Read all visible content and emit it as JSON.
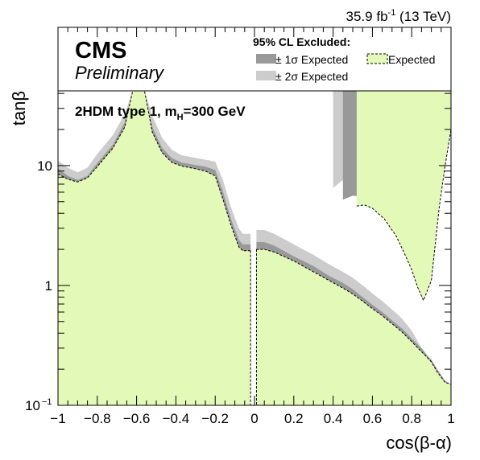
{
  "header": {
    "lumi_text": "35.9 fb",
    "lumi_sup": "-1",
    "energy_text": " (13 TeV)"
  },
  "legend": {
    "experiment": "CMS",
    "status": "Preliminary",
    "title": "95% CL Excluded:",
    "one_sigma": "± 1σ Expected",
    "two_sigma": "± 2σ Expected",
    "expected": "Expected"
  },
  "colors": {
    "expected_fill": "#e2f9b8",
    "one_sigma_fill": "#999999",
    "two_sigma_fill": "#cccccc",
    "frame": "#000000"
  },
  "chart_data": {
    "type": "area",
    "title": "2HDM type 1, m",
    "title_sub": "H",
    "title_tail": "=300 GeV",
    "xlabel": "cos(β-α)",
    "ylabel": "tanβ",
    "x_scale": "linear",
    "y_scale": "log",
    "xlim": [
      -1,
      1
    ],
    "ylim": [
      0.1,
      42
    ],
    "x_ticks": [
      {
        "value": -1,
        "label": "−1"
      },
      {
        "value": -0.8,
        "label": "−0.8"
      },
      {
        "value": -0.6,
        "label": "−0.6"
      },
      {
        "value": -0.4,
        "label": "−0.4"
      },
      {
        "value": -0.2,
        "label": "−0.2"
      },
      {
        "value": 0,
        "label": "0"
      },
      {
        "value": 0.2,
        "label": "0.2"
      },
      {
        "value": 0.4,
        "label": "0.4"
      },
      {
        "value": 0.6,
        "label": "0.6"
      },
      {
        "value": 0.8,
        "label": "0.8"
      },
      {
        "value": 1,
        "label": "1"
      }
    ],
    "y_ticks": [
      {
        "value": 0.1,
        "label": "10",
        "sup": "−1"
      },
      {
        "value": 1,
        "label": "1",
        "sup": ""
      },
      {
        "value": 10,
        "label": "10",
        "sup": ""
      }
    ],
    "series": [
      {
        "name": "± 2σ Expected",
        "left": [
          [
            -1,
            11
          ],
          [
            -0.95,
            9.6
          ],
          [
            -0.9,
            8.8
          ],
          [
            -0.85,
            9.6
          ],
          [
            -0.8,
            12.5
          ],
          [
            -0.72,
            18
          ],
          [
            -0.66,
            27
          ],
          [
            -0.62,
            42
          ],
          [
            -0.56,
            42
          ],
          [
            -0.52,
            26
          ],
          [
            -0.47,
            17
          ],
          [
            -0.42,
            13.5
          ],
          [
            -0.37,
            12.2
          ],
          [
            -0.3,
            11.6
          ],
          [
            -0.25,
            11.2
          ],
          [
            -0.2,
            10.8
          ],
          [
            -0.16,
            7.5
          ],
          [
            -0.12,
            4.5
          ],
          [
            -0.08,
            3.0
          ],
          [
            -0.06,
            2.7
          ],
          [
            -0.02,
            2.7
          ]
        ],
        "right": [
          [
            0.01,
            2.9
          ],
          [
            0.05,
            2.9
          ],
          [
            0.1,
            2.7
          ],
          [
            0.2,
            2.2
          ],
          [
            0.3,
            1.8
          ],
          [
            0.38,
            1.5
          ],
          [
            0.45,
            1.3
          ],
          [
            0.5,
            1.16
          ],
          [
            0.55,
            1.0
          ],
          [
            0.6,
            0.86
          ],
          [
            0.65,
            0.74
          ],
          [
            0.7,
            0.63
          ],
          [
            0.75,
            0.53
          ],
          [
            0.8,
            0.42
          ],
          [
            0.85,
            0.3
          ],
          [
            0.88,
            0.24
          ],
          [
            0.9,
            0.22
          ],
          [
            0.93,
            0.18
          ],
          [
            0.97,
            0.15
          ],
          [
            1,
            0.14
          ]
        ],
        "right_upper": [
          [
            0.4,
            6.5
          ],
          [
            0.45,
            7.6
          ],
          [
            0.5,
            7.9
          ],
          [
            0.55,
            7.8
          ],
          [
            0.6,
            7.4
          ],
          [
            0.67,
            6.3
          ],
          [
            0.73,
            4.5
          ],
          [
            0.77,
            3.3
          ],
          [
            0.8,
            2.3
          ],
          [
            0.83,
            1.6
          ],
          [
            0.86,
            1.2
          ],
          [
            0.9,
            3.5
          ],
          [
            0.94,
            9
          ],
          [
            0.97,
            18
          ],
          [
            1,
            28
          ]
        ]
      },
      {
        "name": "± 1σ Expected",
        "left": [
          [
            -1,
            9.5
          ],
          [
            -0.95,
            8.2
          ],
          [
            -0.9,
            7.6
          ],
          [
            -0.85,
            8.2
          ],
          [
            -0.8,
            10.5
          ],
          [
            -0.72,
            15
          ],
          [
            -0.66,
            23
          ],
          [
            -0.62,
            42
          ],
          [
            -0.56,
            42
          ],
          [
            -0.52,
            21
          ],
          [
            -0.47,
            14
          ],
          [
            -0.42,
            11.5
          ],
          [
            -0.37,
            10.6
          ],
          [
            -0.3,
            10.1
          ],
          [
            -0.25,
            9.8
          ],
          [
            -0.2,
            9.2
          ],
          [
            -0.16,
            6.0
          ],
          [
            -0.12,
            3.6
          ],
          [
            -0.08,
            2.4
          ],
          [
            -0.06,
            2.2
          ],
          [
            -0.02,
            2.2
          ]
        ],
        "right": [
          [
            0.01,
            2.3
          ],
          [
            0.05,
            2.3
          ],
          [
            0.1,
            2.15
          ],
          [
            0.2,
            1.75
          ],
          [
            0.3,
            1.45
          ],
          [
            0.38,
            1.2
          ],
          [
            0.45,
            1.05
          ],
          [
            0.5,
            0.93
          ],
          [
            0.55,
            0.8
          ],
          [
            0.6,
            0.69
          ],
          [
            0.65,
            0.6
          ],
          [
            0.7,
            0.51
          ],
          [
            0.75,
            0.44
          ],
          [
            0.8,
            0.36
          ],
          [
            0.85,
            0.3
          ],
          [
            0.88,
            0.26
          ],
          [
            0.9,
            0.24
          ],
          [
            0.93,
            0.2
          ],
          [
            0.97,
            0.16
          ],
          [
            1,
            0.15
          ]
        ],
        "right_upper": [
          [
            0.45,
            5.2
          ],
          [
            0.5,
            5.6
          ],
          [
            0.55,
            5.5
          ],
          [
            0.6,
            5.1
          ],
          [
            0.67,
            4.3
          ],
          [
            0.73,
            3.2
          ],
          [
            0.77,
            2.3
          ],
          [
            0.8,
            1.6
          ],
          [
            0.83,
            1.15
          ],
          [
            0.86,
            0.85
          ],
          [
            0.9,
            1.5
          ],
          [
            0.94,
            5.5
          ],
          [
            0.97,
            12
          ],
          [
            1,
            22
          ]
        ]
      },
      {
        "name": "Expected",
        "left": [
          [
            -1,
            8.5
          ],
          [
            -0.95,
            7.7
          ],
          [
            -0.9,
            7.3
          ],
          [
            -0.85,
            7.9
          ],
          [
            -0.8,
            9.8
          ],
          [
            -0.72,
            14
          ],
          [
            -0.66,
            21
          ],
          [
            -0.62,
            42
          ],
          [
            -0.56,
            42
          ],
          [
            -0.52,
            19
          ],
          [
            -0.47,
            12.8
          ],
          [
            -0.42,
            10.6
          ],
          [
            -0.37,
            9.9
          ],
          [
            -0.3,
            9.4
          ],
          [
            -0.25,
            9.0
          ],
          [
            -0.2,
            8.2
          ],
          [
            -0.16,
            5.2
          ],
          [
            -0.12,
            3.2
          ],
          [
            -0.08,
            2.1
          ],
          [
            -0.06,
            1.95
          ],
          [
            -0.02,
            1.95
          ]
        ],
        "right": [
          [
            0.01,
            2.0
          ],
          [
            0.05,
            2.0
          ],
          [
            0.1,
            1.9
          ],
          [
            0.2,
            1.6
          ],
          [
            0.3,
            1.3
          ],
          [
            0.38,
            1.1
          ],
          [
            0.45,
            0.95
          ],
          [
            0.5,
            0.85
          ],
          [
            0.55,
            0.74
          ],
          [
            0.6,
            0.64
          ],
          [
            0.65,
            0.56
          ],
          [
            0.7,
            0.48
          ],
          [
            0.75,
            0.41
          ],
          [
            0.8,
            0.34
          ],
          [
            0.85,
            0.28
          ],
          [
            0.88,
            0.25
          ],
          [
            0.9,
            0.23
          ],
          [
            0.93,
            0.19
          ],
          [
            0.97,
            0.155
          ],
          [
            1,
            0.15
          ]
        ],
        "right_upper": [
          [
            0.52,
            4.6
          ],
          [
            0.56,
            4.7
          ],
          [
            0.6,
            4.4
          ],
          [
            0.66,
            3.6
          ],
          [
            0.72,
            2.6
          ],
          [
            0.76,
            1.9
          ],
          [
            0.8,
            1.35
          ],
          [
            0.83,
            0.97
          ],
          [
            0.86,
            0.75
          ],
          [
            0.9,
            1.1
          ],
          [
            0.94,
            4.5
          ],
          [
            0.97,
            10
          ],
          [
            1,
            20
          ]
        ]
      }
    ]
  }
}
